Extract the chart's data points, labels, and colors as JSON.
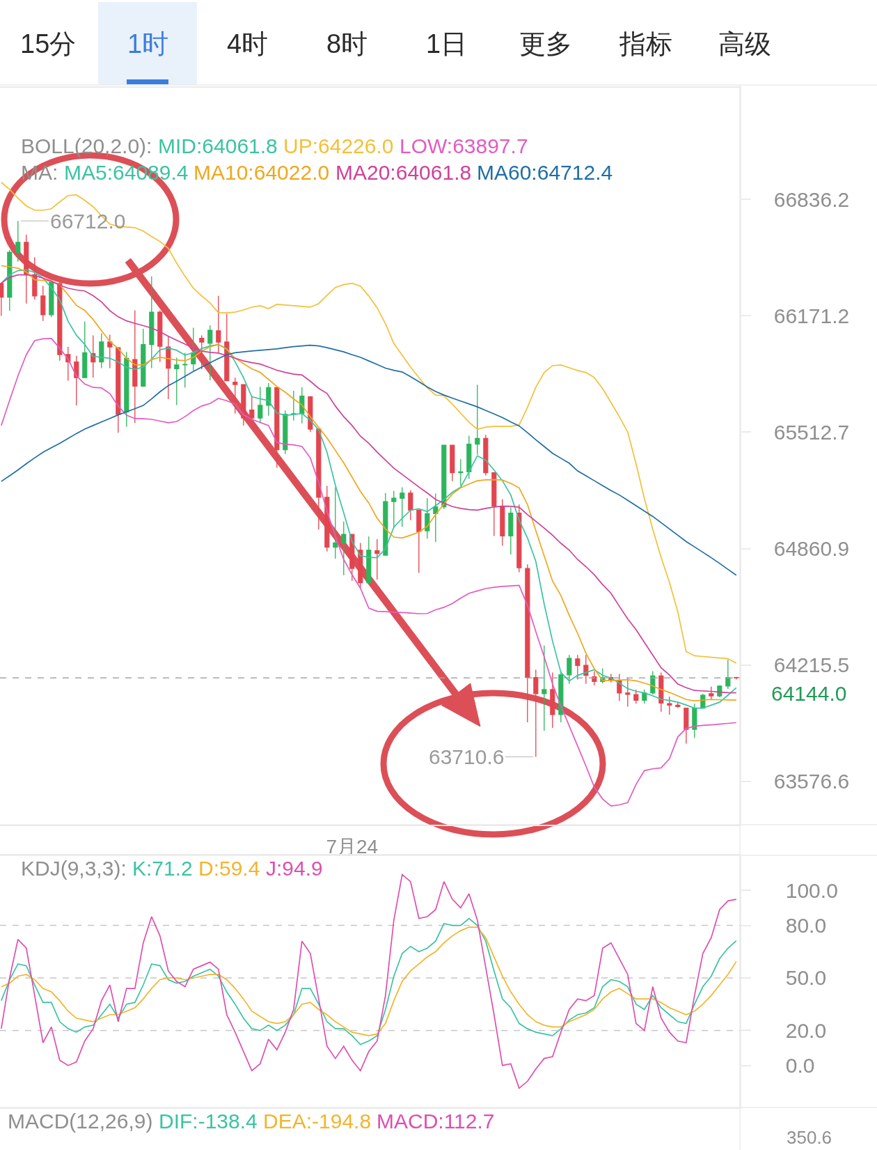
{
  "chart_data": [
    {
      "type": "other",
      "categories": [
        "15分",
        "1时",
        "4时",
        "8时",
        "1日",
        "更多",
        "指标",
        "高级"
      ],
      "colors": [
        "#2b2b2b",
        "#3b7ddd",
        "#2b2b2b",
        "#2b2b2b",
        "#2b2b2b",
        "#2b2b2b",
        "#2b2b2b",
        "#2b2b2b"
      ]
    },
    {
      "type": "candlestick",
      "categories": [
        null,
        null,
        null,
        null,
        null,
        null,
        null,
        null,
        null,
        null,
        null,
        null,
        null,
        null,
        null,
        null,
        null,
        null,
        null,
        null,
        null,
        null,
        null,
        null,
        null,
        null,
        null,
        null,
        null,
        null,
        null,
        null,
        null,
        null,
        null,
        null,
        null,
        null,
        null,
        null,
        null,
        null,
        "7月24",
        null,
        null,
        null,
        null,
        null,
        null,
        null,
        null,
        null,
        null,
        null,
        null,
        null,
        null,
        null,
        null,
        null,
        null,
        null,
        null,
        null,
        null,
        null,
        null,
        null,
        null,
        null,
        null,
        null,
        null,
        null,
        null,
        null,
        null,
        null,
        null,
        null,
        null,
        null,
        null,
        null,
        null,
        null,
        null,
        null,
        null
      ],
      "ohlc": [
        [
          66355,
          66360,
          66170,
          66277
        ],
        [
          66277,
          66547,
          66199,
          66533
        ],
        [
          66533,
          66712.0,
          66480,
          66590
        ],
        [
          66590,
          66633,
          66241,
          66405
        ],
        [
          66405,
          66505,
          66263,
          66284
        ],
        [
          66284,
          66341,
          66142,
          66177
        ],
        [
          66177,
          66369,
          66163,
          66362
        ],
        [
          66355,
          66362,
          65916,
          65951
        ],
        [
          65951,
          65994,
          65803,
          65909
        ],
        [
          65909,
          65944,
          65663,
          65820
        ],
        [
          65820,
          66139,
          65820,
          65961
        ],
        [
          65956,
          66060,
          65820,
          65909
        ],
        [
          65909,
          66071,
          65874,
          66022
        ],
        [
          66022,
          66064,
          65874,
          65994
        ],
        [
          65990,
          65990,
          65509,
          65613
        ],
        [
          65627,
          65966,
          65543,
          65930
        ],
        [
          65923,
          66202,
          65564,
          65772
        ],
        [
          65772,
          66097,
          65768,
          66008
        ],
        [
          66008,
          66395,
          65874,
          66192
        ],
        [
          66192,
          66202,
          65909,
          65998
        ],
        [
          65994,
          66058,
          65699,
          65874
        ],
        [
          65871,
          65933,
          65665,
          65892
        ],
        [
          65892,
          65961,
          65764,
          65895
        ],
        [
          65898,
          66103,
          65860,
          65961
        ],
        [
          66043,
          66060,
          65867,
          66022
        ],
        [
          66015,
          66117,
          65805,
          66089
        ],
        [
          66086,
          66284,
          65958,
          66022
        ],
        [
          66022,
          66182,
          65800,
          65803
        ],
        [
          65795,
          65820,
          65617,
          65781
        ],
        [
          65781,
          65781,
          65550,
          65592
        ],
        [
          65637,
          65718,
          65578,
          65592
        ],
        [
          65592,
          65768,
          65564,
          65664
        ],
        [
          65664,
          65789,
          65606,
          65764
        ],
        [
          65764,
          65764,
          65313,
          65414
        ],
        [
          65414,
          65634,
          65390,
          65613
        ],
        [
          65613,
          65746,
          65578,
          65617
        ],
        [
          65617,
          65766,
          65562,
          65716
        ],
        [
          65712,
          65716,
          65513,
          65530
        ],
        [
          65530,
          65530,
          64967,
          65147
        ],
        [
          65147,
          65211,
          64844,
          64868
        ],
        [
          64868,
          65203,
          64805,
          64892
        ],
        [
          64892,
          65011,
          64713,
          64940
        ],
        [
          64940,
          64940,
          64682,
          64750
        ],
        [
          64852,
          64892,
          64639,
          64671
        ],
        [
          64671,
          64928,
          64666,
          64852
        ],
        [
          64849,
          64913,
          64687,
          64833
        ],
        [
          64824,
          65171,
          64824,
          65123
        ],
        [
          65123,
          65183,
          64976,
          65142
        ],
        [
          65142,
          65203,
          64982,
          65171
        ],
        [
          65171,
          65187,
          65019,
          65075
        ],
        [
          65075,
          65075,
          64726,
          64956
        ],
        [
          64960,
          65142,
          64916,
          65056
        ],
        [
          65056,
          65168,
          64897,
          65094
        ],
        [
          65094,
          65442,
          65083,
          65439
        ],
        [
          65439,
          65442,
          65238,
          65285
        ],
        [
          65285,
          65361,
          65211,
          65290
        ],
        [
          65290,
          65493,
          65250,
          65445
        ],
        [
          65445,
          65779,
          65386,
          65477
        ],
        [
          65477,
          65498,
          65269,
          65285
        ],
        [
          65285,
          65285,
          64931,
          65099
        ],
        [
          65094,
          65136,
          64876,
          64931
        ],
        [
          64931,
          65091,
          64828,
          65059
        ],
        [
          65059,
          65107,
          64729,
          64754
        ],
        [
          64750,
          64773,
          63900,
          64146
        ],
        [
          64146,
          64189,
          63710.6,
          64057
        ],
        [
          64057,
          64323,
          63853,
          64080
        ],
        [
          64080,
          64174,
          63869,
          63942
        ],
        [
          63942,
          64181,
          63900,
          64161
        ],
        [
          64161,
          64271,
          64111,
          64252
        ],
        [
          64249,
          64271,
          64135,
          64213
        ],
        [
          64213,
          64271,
          64111,
          64158
        ],
        [
          64150,
          64181,
          64103,
          64124
        ],
        [
          64124,
          64197,
          64114,
          64146
        ],
        [
          64146,
          64166,
          64119,
          64130
        ],
        [
          64127,
          64166,
          64017,
          64061
        ],
        [
          64061,
          64146,
          63986,
          64053
        ],
        [
          64052,
          64080,
          64002,
          64021
        ],
        [
          64021,
          64080,
          64002,
          64061
        ],
        [
          64061,
          64181,
          64053,
          64155
        ],
        [
          64155,
          64174,
          63958,
          64005
        ],
        [
          64002,
          64041,
          63942,
          63994
        ],
        [
          63994,
          64010,
          63978,
          63986
        ],
        [
          63978,
          63978,
          63783,
          63861
        ],
        [
          63861,
          64002,
          63814,
          63978
        ],
        [
          63978,
          64057,
          63975,
          64048
        ],
        [
          64057,
          64096,
          64025,
          64045
        ],
        [
          64045,
          64103,
          64037,
          64099
        ],
        [
          64099,
          64244,
          64083,
          64146
        ],
        [
          64146,
          64150,
          64135,
          64144.0
        ]
      ],
      "colors": [
        "#e2454f",
        "#2db55d",
        "#2db55d",
        "#e2454f",
        "#e2454f",
        "#e2454f",
        "#2db55d",
        "#e2454f",
        "#e2454f",
        "#e2454f",
        "#2db55d",
        "#e2454f",
        "#2db55d",
        "#e2454f",
        "#e2454f",
        "#2db55d",
        "#e2454f",
        "#2db55d",
        "#2db55d",
        "#e2454f",
        "#e2454f",
        "#2db55d",
        "#2db55d",
        "#2db55d",
        "#e2454f",
        "#2db55d",
        "#e2454f",
        "#e2454f",
        "#e2454f",
        "#e2454f",
        "#e2454f",
        "#2db55d",
        "#2db55d",
        "#e2454f",
        "#2db55d",
        "#2db55d",
        "#2db55d",
        "#e2454f",
        "#e2454f",
        "#e2454f",
        "#2db55d",
        "#2db55d",
        "#e2454f",
        "#e2454f",
        "#2db55d",
        "#e2454f",
        "#2db55d",
        "#2db55d",
        "#2db55d",
        "#e2454f",
        "#e2454f",
        "#2db55d",
        "#2db55d",
        "#2db55d",
        "#e2454f",
        "#2db55d",
        "#2db55d",
        "#2db55d",
        "#e2454f",
        "#e2454f",
        "#e2454f",
        "#2db55d",
        "#e2454f",
        "#e2454f",
        "#e2454f",
        "#2db55d",
        "#e2454f",
        "#2db55d",
        "#2db55d",
        "#e2454f",
        "#e2454f",
        "#e2454f",
        "#2db55d",
        "#e2454f",
        "#e2454f",
        "#e2454f",
        "#e2454f",
        "#2db55d",
        "#2db55d",
        "#e2454f",
        "#e2454f",
        "#e2454f",
        "#e2454f",
        "#2db55d",
        "#2db55d",
        "#e2454f",
        "#2db55d",
        "#2db55d",
        "#e2454f"
      ],
      "series": [
        {
          "name": "MID:64061.8",
          "type": "line",
          "color": "#3cc3a2",
          "values": [
            null,
            null,
            null,
            null,
            null,
            null,
            null,
            null,
            null,
            null,
            null,
            null,
            null,
            null,
            null,
            null,
            null,
            null,
            null,
            null,
            null,
            null,
            null,
            null,
            null,
            null,
            null,
            null,
            null,
            null,
            null,
            null,
            null,
            null,
            null,
            null,
            null,
            null,
            null,
            null,
            null,
            null,
            null,
            null,
            null,
            null,
            null,
            null,
            null,
            null,
            null,
            null,
            null,
            null,
            null,
            null,
            null,
            null,
            null,
            null,
            null,
            null,
            null,
            null,
            null,
            null,
            null,
            null,
            null,
            null,
            null,
            null,
            null,
            null,
            null,
            null,
            null,
            null,
            null,
            null,
            null,
            null,
            null,
            null,
            null,
            null,
            null,
            null,
            null
          ]
        },
        {
          "name": "UP:64226.0",
          "type": "line",
          "color": "#f3c03a",
          "values": [
            66934,
            66894,
            66842,
            66798,
            66774,
            66774,
            66782,
            66822,
            66858,
            66862,
            66830,
            66794,
            66742,
            66694,
            66682,
            66678,
            66674,
            66654,
            66623,
            66595,
            66555,
            66471,
            66396,
            66328,
            66284,
            66244,
            66188,
            66188,
            66192,
            66204,
            66220,
            66228,
            66212,
            66236,
            66232,
            66228,
            66224,
            66220,
            66240,
            66288,
            66332,
            66348,
            66356,
            66340,
            66284,
            66216,
            66125,
            66014,
            65947,
            65880,
            65821,
            65762,
            65722,
            65718,
            65671,
            65620,
            65569,
            65529,
            65541,
            65545,
            65545,
            65545,
            65553,
            65652,
            65766,
            65849,
            65888,
            65892,
            65876,
            65861,
            65849,
            65821,
            65758,
            65679,
            65600,
            65513,
            65335,
            65140,
            64968,
            64811,
            64672,
            64509,
            64289,
            64266,
            64262,
            64258,
            64254,
            64250,
            64226.0
          ]
        },
        {
          "name": "LOW:63897.7",
          "type": "line",
          "color": "#e25cc0",
          "values": [
            65550,
            65692,
            65830,
            65950,
            66030,
            66040,
            66042,
            65987,
            65925,
            65830,
            65784,
            65765,
            65762,
            65730,
            65660,
            65608,
            65589,
            65588,
            65585,
            65575,
            65566,
            65572,
            65600,
            65634,
            65660,
            65674,
            65703,
            65690,
            65670,
            65610,
            65585,
            65567,
            65550,
            65455,
            65444,
            65441,
            65432,
            65368,
            65230,
            65070,
            64930,
            64800,
            64715,
            64640,
            64530,
            64512,
            64510,
            64507,
            64505,
            64502,
            64499,
            64500,
            64520,
            64534,
            64555,
            64585,
            64612,
            64625,
            64638,
            64645,
            64650,
            64653,
            64656,
            64545,
            64400,
            64260,
            64110,
            63990,
            63880,
            63770,
            63660,
            63545,
            63480,
            63442,
            63448,
            63460,
            63560,
            63635,
            63645,
            63650,
            63700,
            63820,
            63866,
            63878,
            63883,
            63886,
            63890,
            63894,
            63897.7
          ]
        },
        {
          "name": "MA5:64089.4",
          "type": "line",
          "color": "#3cc3a2",
          "values": [
            66356,
            66405,
            66428,
            66433,
            66418,
            66385,
            66330,
            66262,
            66140,
            66060,
            66008,
            65940,
            65936,
            65930,
            65909,
            65878,
            65868,
            65880,
            65925,
            65978,
            65988,
            65975,
            65948,
            65962,
            65985,
            66000,
            66008,
            65985,
            65910,
            65820,
            65712,
            65700,
            65691,
            65620,
            65607,
            65612,
            65618,
            65580,
            65525,
            65400,
            65215,
            65060,
            64900,
            64820,
            64812,
            64810,
            64860,
            64980,
            65030,
            65075,
            65083,
            65067,
            65100,
            65135,
            65175,
            65203,
            65290,
            65380,
            65355,
            65300,
            65240,
            65160,
            65020,
            64920,
            64789,
            64552,
            64347,
            64174,
            64127,
            64158,
            64174,
            64189,
            64158,
            64143,
            64115,
            64085,
            64070,
            64062,
            64045,
            64027,
            64020,
            64010,
            63995,
            63978,
            63978,
            63994,
            64010,
            64049,
            64089.4
          ]
        },
        {
          "name": "MA10:64022.0",
          "type": "line",
          "color": "#eea81f",
          "values": [
            66456,
            66450,
            66442,
            66420,
            66376,
            66372,
            66368,
            66348,
            66290,
            66230,
            66201,
            66150,
            66086,
            66025,
            65985,
            65930,
            65893,
            65892,
            65922,
            65936,
            65928,
            65920,
            65916,
            65935,
            65970,
            65995,
            66008,
            65980,
            65930,
            65900,
            65870,
            65850,
            65810,
            65770,
            65738,
            65700,
            65666,
            65600,
            65540,
            65480,
            65410,
            65340,
            65260,
            65180,
            65115,
            65030,
            64970,
            64925,
            64920,
            64935,
            64952,
            64985,
            65050,
            65110,
            65165,
            65200,
            65222,
            65240,
            65245,
            65246,
            65244,
            65225,
            65200,
            65107,
            64961,
            64820,
            64680,
            64600,
            64490,
            64390,
            64280,
            64195,
            64130,
            64130,
            64132,
            64134,
            64128,
            64115,
            64100,
            64080,
            64064,
            64045,
            64025,
            64018,
            64022,
            64025,
            64024,
            64023,
            64022.0
          ]
        },
        {
          "name": "MA20:64061.8",
          "type": "line",
          "color": "#cf4299",
          "values": [
            66356,
            66390,
            66404,
            66404,
            66400,
            66385,
            66368,
            66345,
            66328,
            66318,
            66312,
            66285,
            66250,
            66200,
            66165,
            66142,
            66128,
            66115,
            66101,
            66080,
            66055,
            66032,
            66010,
            65988,
            65970,
            65963,
            65959,
            65945,
            65930,
            65915,
            65905,
            65897,
            65880,
            65862,
            65850,
            65840,
            65835,
            65800,
            65760,
            65731,
            65660,
            65600,
            65550,
            65490,
            65450,
            65400,
            65355,
            65310,
            65275,
            65240,
            65205,
            65171,
            65135,
            65115,
            65095,
            65085,
            65078,
            65075,
            65085,
            65093,
            65098,
            65097,
            65092,
            65050,
            65013,
            64975,
            64935,
            64890,
            64852,
            64800,
            64760,
            64715,
            64660,
            64612,
            64540,
            64470,
            64410,
            64340,
            64270,
            64200,
            64160,
            64110,
            64090,
            64075,
            64072,
            64070,
            64066,
            64063,
            64061.8
          ]
        },
        {
          "name": "MA60:64712.4",
          "type": "line",
          "color": "#1f6fa6",
          "values": [
            65236,
            65268,
            65300,
            65335,
            65368,
            65400,
            65425,
            65450,
            65477,
            65505,
            65530,
            65550,
            65570,
            65590,
            65610,
            65627,
            65645,
            65663,
            65700,
            65740,
            65775,
            65800,
            65828,
            65855,
            65880,
            65905,
            65928,
            65950,
            65961,
            65966,
            65971,
            65975,
            65979,
            65983,
            65990,
            65996,
            66000,
            66004,
            66000,
            65990,
            65978,
            65966,
            65950,
            65935,
            65915,
            65895,
            65874,
            65862,
            65852,
            65826,
            65797,
            65768,
            65742,
            65722,
            65705,
            65688,
            65672,
            65655,
            65635,
            65615,
            65595,
            65570,
            65548,
            65510,
            65470,
            65432,
            65394,
            65366,
            65338,
            65295,
            65268,
            65240,
            65212,
            65185,
            65160,
            65130,
            65100,
            65070,
            65040,
            65005,
            64970,
            64935,
            64900,
            64870,
            64840,
            64810,
            64778,
            64745,
            64712.4
          ]
        }
      ],
      "log": true,
      "ylim": [
        63340,
        67480
      ],
      "yticks": [
        66836.2,
        66171.2,
        65512.7,
        64860.9,
        64215.5,
        63576.6
      ],
      "legend": "top left",
      "annotations": [
        "BOLL(20,2.0):",
        "MA:",
        "66712.0",
        "63710.6",
        "64144.0"
      ],
      "ref_lines": [
        {
          "axis": "y",
          "value": 64144.0,
          "color": "#a6a6a6",
          "line_style": "dashed"
        }
      ]
    },
    {
      "type": "line",
      "categories": [
        null,
        null,
        null,
        null,
        null,
        null,
        null,
        null,
        null,
        null,
        null,
        null,
        null,
        null,
        null,
        null,
        null,
        null,
        null,
        null,
        null,
        null,
        null,
        null,
        null,
        null,
        null,
        null,
        null,
        null,
        null,
        null,
        null,
        null,
        null,
        null,
        null,
        null,
        null,
        null,
        null,
        null,
        null,
        null,
        null,
        null,
        null,
        null,
        null,
        null,
        null,
        null,
        null,
        null,
        null,
        null,
        null,
        null,
        null,
        null,
        null,
        null,
        null,
        null,
        null,
        null,
        null,
        null,
        null,
        null,
        null,
        null,
        null,
        null,
        null,
        null,
        null,
        null,
        null,
        null,
        null,
        null,
        null,
        null,
        null,
        null,
        null,
        null,
        null
      ],
      "series": [
        {
          "name": "K:71.2",
          "color": "#3cc3a2",
          "values": [
            37,
            49,
            58,
            57,
            46,
            36,
            36,
            25,
            21,
            19,
            22,
            23,
            29,
            35,
            27,
            35,
            36,
            46,
            58,
            57,
            49,
            47,
            48,
            51,
            53,
            55,
            51,
            42,
            35,
            27,
            21,
            20,
            23,
            20,
            23,
            29,
            44,
            44,
            35,
            25,
            21,
            21,
            17,
            12,
            14,
            17,
            32,
            51,
            64,
            68,
            65,
            67,
            71,
            81,
            80,
            80,
            84,
            80,
            71,
            54,
            38,
            33,
            24,
            21,
            19,
            18,
            17,
            21,
            26,
            29,
            30,
            33,
            45,
            49,
            48,
            45,
            35,
            32,
            40,
            33,
            29,
            25,
            24,
            35,
            45,
            51,
            61,
            67,
            71.2
          ]
        },
        {
          "name": "D:59.4",
          "color": "#f2b52c",
          "values": [
            45,
            47,
            51,
            52,
            49,
            44,
            42,
            37,
            31,
            27,
            26,
            25,
            27,
            29,
            29,
            31,
            33,
            38,
            44,
            49,
            50,
            50,
            49,
            50,
            51,
            52,
            52,
            49,
            44,
            38,
            31,
            28,
            25,
            24,
            25,
            29,
            35,
            36,
            32,
            29,
            25,
            22,
            19,
            18,
            17,
            18,
            24,
            37,
            48,
            54,
            58,
            62,
            65,
            70,
            74,
            77,
            79,
            79,
            73,
            62,
            51,
            42,
            35,
            29,
            25,
            23,
            22,
            22,
            25,
            27,
            29,
            32,
            38,
            42,
            44,
            41,
            38,
            38,
            38,
            36,
            33,
            31,
            29,
            31,
            35,
            40,
            46,
            52,
            59.4
          ]
        },
        {
          "name": "J:94.9",
          "color": "#dd4fb0",
          "values": [
            21,
            50,
            72,
            67,
            40,
            13,
            22,
            3,
            0,
            2,
            14,
            21,
            37,
            46,
            25,
            44,
            44,
            70,
            85,
            74,
            54,
            48,
            45,
            55,
            57,
            59,
            55,
            29,
            19,
            8,
            -3,
            1,
            15,
            9,
            19,
            32,
            71,
            64,
            38,
            11,
            4,
            11,
            3,
            -3,
            8,
            14,
            40,
            83,
            109,
            105,
            84,
            85,
            89,
            105,
            95,
            90,
            98,
            83,
            56,
            29,
            0,
            1,
            -13,
            -9,
            -2,
            4,
            5,
            19,
            32,
            38,
            37,
            40,
            67,
            70,
            61,
            52,
            24,
            20,
            45,
            27,
            19,
            14,
            13,
            40,
            64,
            73,
            89,
            94,
            94.9
          ]
        }
      ],
      "ylim": [
        -24,
        120
      ],
      "yticks": [
        {
          "value": 100,
          "label": "100.0"
        },
        {
          "value": 80,
          "label": "80.0"
        },
        {
          "value": 50,
          "label": "50.0"
        },
        {
          "value": 20,
          "label": "20.0"
        },
        {
          "value": 0,
          "label": "0.0"
        }
      ],
      "legend": "top left",
      "annotations": [
        "KDJ(9,3,3):"
      ],
      "ref_lines": [
        {
          "axis": "y",
          "value": 80,
          "color": "#c6c6c6",
          "line_style": "dashed"
        },
        {
          "axis": "y",
          "value": 50,
          "color": "#c6c6c6",
          "line_style": "dashed"
        },
        {
          "axis": "y",
          "value": 20,
          "color": "#c6c6c6",
          "line_style": "dashed"
        }
      ]
    },
    {
      "type": "other",
      "title": "MACD(12,26,9)",
      "categories": [
        "DIF:-138.4",
        "DEA:-194.8",
        "MACD:112.7"
      ],
      "colors": [
        "#3cc3a2",
        "#f2b52c",
        "#dd4fb0"
      ],
      "annotations": [
        "350.6"
      ]
    }
  ]
}
